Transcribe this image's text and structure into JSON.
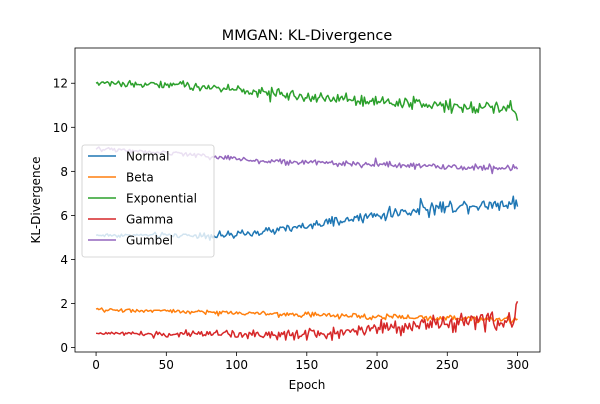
{
  "chart_data": {
    "type": "line",
    "title": "MMGAN: KL-Divergence",
    "xlabel": "Epoch",
    "ylabel": "KL-Divergence",
    "xlim": [
      -15,
      316
    ],
    "ylim": [
      -0.2,
      13.6
    ],
    "xticks": [
      0,
      50,
      100,
      150,
      200,
      250,
      300
    ],
    "yticks": [
      0,
      2,
      4,
      6,
      8,
      10,
      12
    ],
    "grid": false,
    "legend_placement": "center-left",
    "epochs": {
      "start": 0,
      "end": 300,
      "step": 1
    },
    "series": [
      {
        "name": "Normal",
        "color": "#1f77b4",
        "start_value": 5.1,
        "end_value": 6.4,
        "trend_points": [
          [
            0,
            5.1
          ],
          [
            100,
            5.1
          ],
          [
            150,
            5.5
          ],
          [
            200,
            6.0
          ],
          [
            250,
            6.4
          ],
          [
            300,
            6.6
          ]
        ],
        "noise_amplitude_start": 0.08,
        "noise_amplitude_end": 0.3
      },
      {
        "name": "Beta",
        "color": "#ff7f0e",
        "start_value": 1.75,
        "end_value": 1.3,
        "trend_points": [
          [
            0,
            1.72
          ],
          [
            100,
            1.58
          ],
          [
            150,
            1.48
          ],
          [
            200,
            1.4
          ],
          [
            250,
            1.33
          ],
          [
            300,
            1.28
          ]
        ],
        "noise_amplitude_start": 0.07,
        "noise_amplitude_end": 0.14
      },
      {
        "name": "Exponential",
        "color": "#2ca02c",
        "start_value": 12.0,
        "end_value": 10.3,
        "trend_points": [
          [
            0,
            12.0
          ],
          [
            50,
            11.95
          ],
          [
            100,
            11.7
          ],
          [
            150,
            11.4
          ],
          [
            200,
            11.2
          ],
          [
            250,
            11.0
          ],
          [
            300,
            10.9
          ]
        ],
        "noise_amplitude_start": 0.12,
        "noise_amplitude_end": 0.3
      },
      {
        "name": "Gamma",
        "color": "#d62728",
        "start_value": 0.65,
        "end_value": 2.1,
        "trend_points": [
          [
            0,
            0.65
          ],
          [
            150,
            0.6
          ],
          [
            200,
            0.9
          ],
          [
            250,
            1.1
          ],
          [
            300,
            1.25
          ]
        ],
        "noise_amplitude_start": 0.04,
        "noise_amplitude_end": 0.45
      },
      {
        "name": "Gumbel",
        "color": "#9467bd",
        "start_value": 9.0,
        "end_value": 8.1,
        "trend_points": [
          [
            0,
            9.02
          ],
          [
            50,
            8.85
          ],
          [
            100,
            8.55
          ],
          [
            150,
            8.4
          ],
          [
            200,
            8.3
          ],
          [
            250,
            8.2
          ],
          [
            300,
            8.15
          ]
        ],
        "noise_amplitude_start": 0.1,
        "noise_amplitude_end": 0.14
      }
    ]
  }
}
